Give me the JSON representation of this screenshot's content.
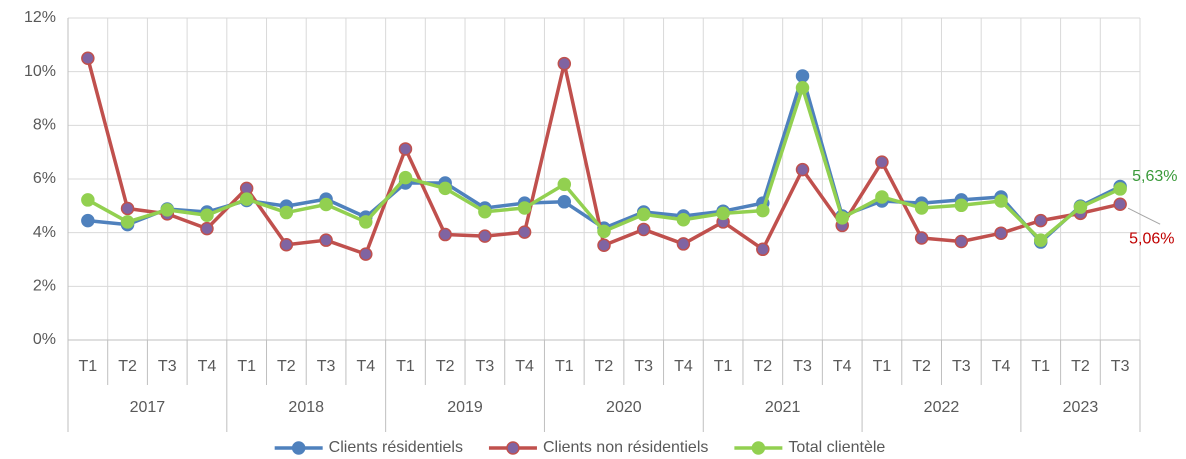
{
  "chart_data": {
    "type": "line",
    "categories": [
      "T1",
      "T2",
      "T3",
      "T4",
      "T1",
      "T2",
      "T3",
      "T4",
      "T1",
      "T2",
      "T3",
      "T4",
      "T1",
      "T2",
      "T3",
      "T4",
      "T1",
      "T2",
      "T3",
      "T4",
      "T1",
      "T2",
      "T3",
      "T4",
      "T1",
      "T2",
      "T3"
    ],
    "groups": [
      {
        "label": "2017",
        "count": 4
      },
      {
        "label": "2018",
        "count": 4
      },
      {
        "label": "2019",
        "count": 4
      },
      {
        "label": "2020",
        "count": 4
      },
      {
        "label": "2021",
        "count": 4
      },
      {
        "label": "2022",
        "count": 4
      },
      {
        "label": "2023",
        "count": 3
      }
    ],
    "series": [
      {
        "name": "Clients résidentiels",
        "color": "#4f81bd",
        "marker_fill": "#4f81bd",
        "values": [
          4.45,
          4.3,
          4.88,
          4.77,
          5.2,
          4.99,
          5.25,
          4.58,
          5.85,
          5.85,
          4.92,
          5.1,
          5.15,
          4.17,
          4.77,
          4.62,
          4.8,
          5.1,
          9.84,
          4.62,
          5.18,
          5.1,
          5.22,
          5.33,
          3.65,
          4.99,
          5.72
        ]
      },
      {
        "name": "Clients non résidentiels",
        "color": "#c0504d",
        "marker_fill": "#8064a2",
        "values": [
          10.5,
          4.9,
          4.7,
          4.15,
          5.65,
          3.55,
          3.72,
          3.2,
          7.12,
          3.93,
          3.87,
          4.02,
          10.3,
          3.53,
          4.12,
          3.58,
          4.4,
          3.38,
          6.35,
          4.27,
          6.63,
          3.8,
          3.67,
          3.98,
          4.45,
          4.72,
          5.06
        ],
        "value_labels": [
          null,
          null,
          null,
          null,
          null,
          null,
          null,
          null,
          null,
          null,
          null,
          null,
          null,
          null,
          null,
          null,
          null,
          null,
          null,
          null,
          null,
          null,
          null,
          null,
          null,
          null,
          "5,06%"
        ],
        "label_color": "#c00000"
      },
      {
        "name": "Total clientèle",
        "color": "#92d050",
        "marker_fill": "#92d050",
        "values": [
          5.22,
          4.4,
          4.85,
          4.65,
          5.25,
          4.75,
          5.05,
          4.4,
          6.05,
          5.65,
          4.78,
          4.92,
          5.8,
          4.05,
          4.68,
          4.48,
          4.72,
          4.82,
          9.4,
          4.55,
          5.33,
          4.92,
          5.02,
          5.18,
          3.72,
          4.95,
          5.63
        ],
        "value_labels": [
          null,
          null,
          null,
          null,
          null,
          null,
          null,
          null,
          null,
          null,
          null,
          null,
          null,
          null,
          null,
          null,
          null,
          null,
          null,
          null,
          null,
          null,
          null,
          null,
          null,
          null,
          "5,63%"
        ],
        "label_color": "#3a9a3a"
      }
    ],
    "ylim": [
      0,
      12
    ],
    "yticks": [
      {
        "value": 0,
        "label": "0%"
      },
      {
        "value": 2,
        "label": "2%"
      },
      {
        "value": 4,
        "label": "4%"
      },
      {
        "value": 6,
        "label": "6%"
      },
      {
        "value": 8,
        "label": "8%"
      },
      {
        "value": 10,
        "label": "10%"
      },
      {
        "value": 12,
        "label": "12%"
      }
    ],
    "grid": true,
    "legend": "bottom"
  }
}
